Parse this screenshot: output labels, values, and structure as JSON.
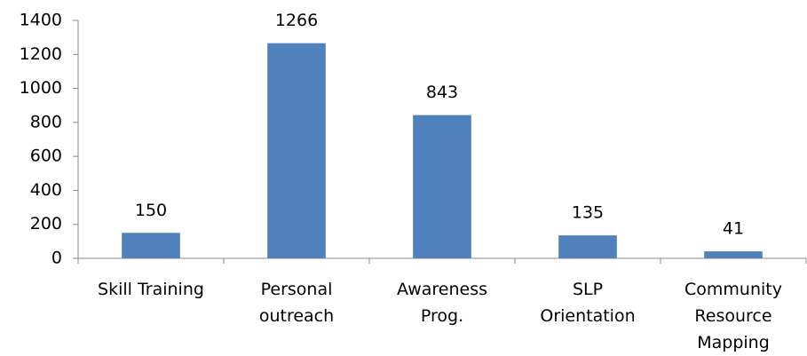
{
  "chart_data": {
    "type": "bar",
    "categories": [
      "Skill Training",
      "Personal outreach",
      "Awareness Prog.",
      "SLP Orientation",
      "Community Resource Mapping"
    ],
    "values": [
      150,
      1266,
      843,
      135,
      41
    ],
    "color": "#4f81bd",
    "ylim": [
      0,
      1400
    ],
    "yticks": [
      0,
      200,
      400,
      600,
      800,
      1000,
      1200,
      1400
    ],
    "grid": false
  }
}
